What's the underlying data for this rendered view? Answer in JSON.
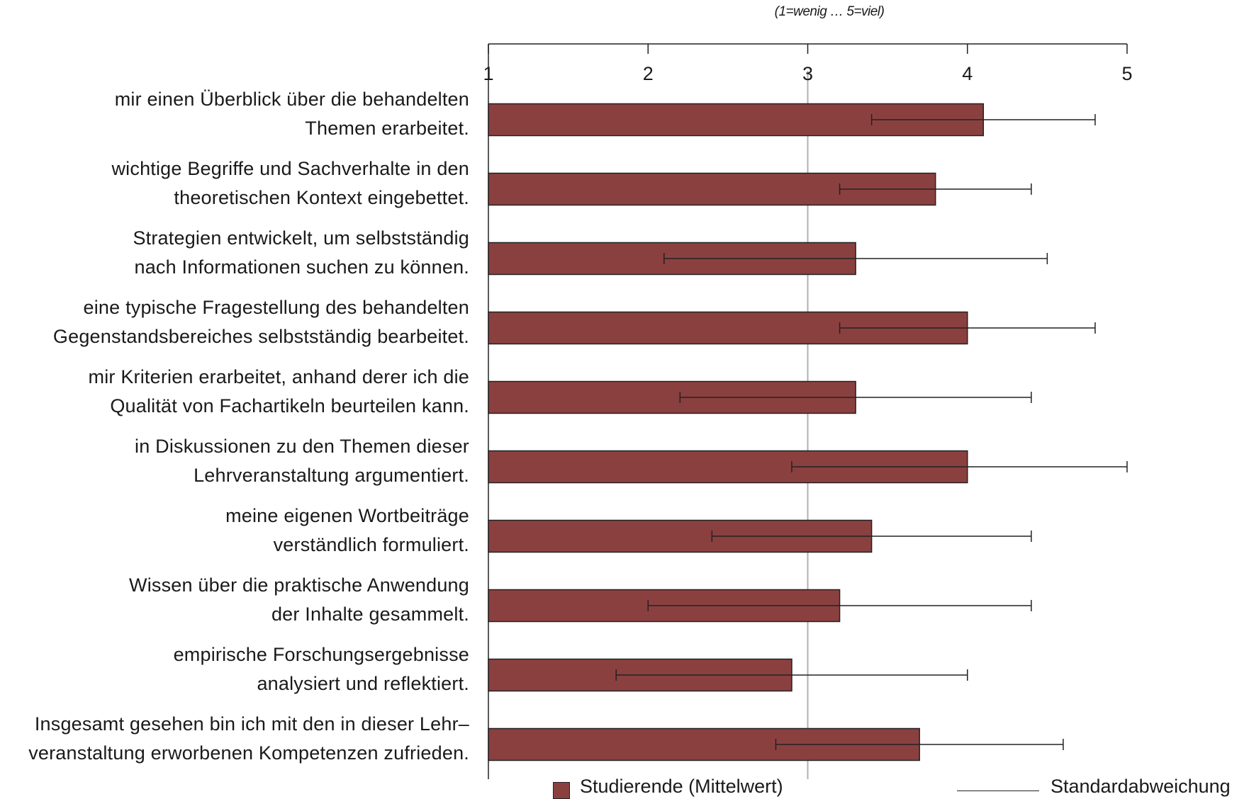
{
  "colors": {
    "bar": "#8b4040",
    "bar_edge": "#222222",
    "reference_line": "#b0b0b0",
    "axis": "#222222"
  },
  "chart_data": {
    "type": "bar",
    "orientation": "horizontal",
    "scale_note": "(1=wenig … 5=viel)",
    "xlim": [
      1,
      5
    ],
    "xticks": [
      "1",
      "2",
      "3",
      "4",
      "5"
    ],
    "reference_line": 3,
    "categories": [
      [
        "mir einen Überblick über die behandelten",
        "Themen erarbeitet."
      ],
      [
        "wichtige Begriffe und Sachverhalte in den",
        "theoretischen Kontext eingebettet."
      ],
      [
        "Strategien entwickelt, um selbstständig",
        "nach Informationen suchen zu können."
      ],
      [
        "eine typische Fragestellung des behandelten",
        "Gegenstandsbereiches selbstständig bearbeitet."
      ],
      [
        "mir Kriterien erarbeitet, anhand derer ich die",
        "Qualität von Fachartikeln beurteilen kann."
      ],
      [
        "in Diskussionen zu den Themen dieser",
        "Lehrveranstaltung argumentiert."
      ],
      [
        "meine eigenen Wortbeiträge",
        "verständlich formuliert."
      ],
      [
        "Wissen über die praktische Anwendung",
        "der Inhalte gesammelt."
      ],
      [
        "empirische Forschungsergebnisse",
        "analysiert und reflektiert."
      ],
      [
        "Insgesamt gesehen bin ich mit den in dieser Lehr–",
        "veranstaltung erworbenen Kompetenzen zufrieden."
      ]
    ],
    "series": [
      {
        "name": "Studierende (Mittelwert)",
        "values": [
          4.1,
          3.8,
          3.3,
          4.0,
          3.3,
          4.0,
          3.4,
          3.2,
          2.9,
          3.7
        ],
        "error_low": [
          3.4,
          3.2,
          2.1,
          3.2,
          2.2,
          2.9,
          2.4,
          2.0,
          1.8,
          2.8
        ],
        "error_high": [
          4.8,
          4.4,
          4.5,
          4.8,
          4.4,
          5.0,
          4.4,
          4.4,
          4.0,
          4.6
        ]
      }
    ],
    "legend": {
      "position": "bottom",
      "items": [
        "Studierende (Mittelwert)",
        "Standardabweichung"
      ]
    }
  }
}
